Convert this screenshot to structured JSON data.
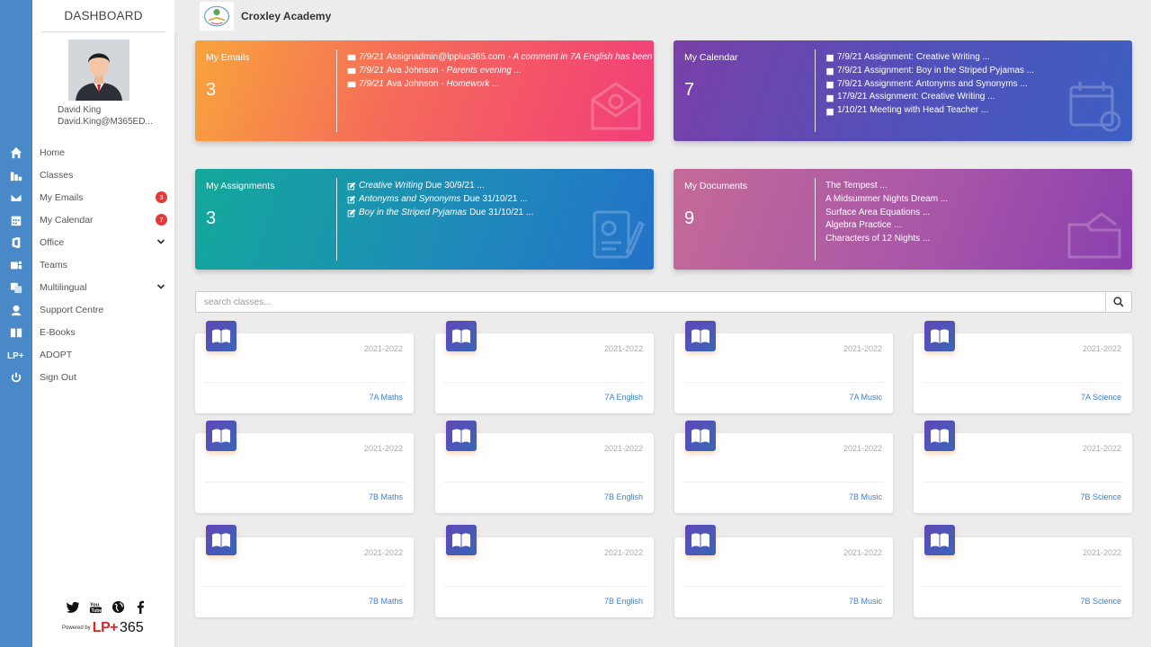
{
  "sidebar": {
    "title": "DASHBOARD",
    "user": {
      "name": "David King",
      "email": "David.King@M365ED..."
    },
    "nav": [
      {
        "label": "Home",
        "icon": "home-icon"
      },
      {
        "label": "Classes",
        "icon": "classes-icon"
      },
      {
        "label": "My Emails",
        "icon": "envelope-icon",
        "badge": "3"
      },
      {
        "label": "My Calendar",
        "icon": "calendar-icon",
        "badge": "7"
      },
      {
        "label": "Office",
        "icon": "office-icon",
        "expandable": true
      },
      {
        "label": "Teams",
        "icon": "teams-icon"
      },
      {
        "label": "Multilingual",
        "icon": "translate-icon",
        "expandable": true
      },
      {
        "label": "Support Centre",
        "icon": "support-icon"
      },
      {
        "label": "E-Books",
        "icon": "ebooks-icon"
      },
      {
        "label": "ADOPT",
        "icon": "lp-icon"
      },
      {
        "label": "Sign Out",
        "icon": "power-icon"
      }
    ],
    "social": [
      "twitter-icon",
      "youtube-icon",
      "globe-icon",
      "facebook-icon"
    ],
    "powered_by": "Powered by",
    "brand_lp": "LP+",
    "brand_365": "365"
  },
  "header": {
    "school": "Croxley Academy"
  },
  "cards": {
    "emails": {
      "label": "My Emails",
      "count": "3",
      "items": [
        {
          "date": "7/9/21",
          "sender": "Assignadmin@lpplus365.com",
          "subject": "- A comment in 7A English has been"
        },
        {
          "date": "7/9/21",
          "sender": "Ava Johnson",
          "subject": "- Parents evening ..."
        },
        {
          "date": "7/9/21",
          "sender": "Ava Johnson",
          "subject": "- Homework ..."
        }
      ]
    },
    "calendar": {
      "label": "My Calendar",
      "count": "7",
      "items": [
        "7/9/21 Assignment: Creative Writing ...",
        "7/9/21 Assignment: Boy in the Striped Pyjamas ...",
        "7/9/21 Assignment: Antonyms and Synonyms ...",
        "17/9/21 Assignment: Creative Writing ...",
        "1/10/21 Meeting with Head Teacher ..."
      ]
    },
    "assignments": {
      "label": "My Assignments",
      "count": "3",
      "items": [
        {
          "title": "Creative Writing",
          "due": "Due 30/9/21 ..."
        },
        {
          "title": "Antonyms and Synonyms",
          "due": "Due 31/10/21 ..."
        },
        {
          "title": "Boy in the Striped Pyjamas",
          "due": "Due 31/10/21 ..."
        }
      ]
    },
    "documents": {
      "label": "My Documents",
      "count": "9",
      "items": [
        "The Tempest ...",
        "A Midsummer Nights Dream ...",
        "Surface Area Equations ...",
        "Algebra Practice ...",
        "Characters of 12 Nights ..."
      ]
    }
  },
  "search": {
    "placeholder": "search classes..."
  },
  "classes": [
    {
      "year": "2021-2022",
      "name": "7A Maths"
    },
    {
      "year": "2021-2022",
      "name": "7A English"
    },
    {
      "year": "2021-2022",
      "name": "7A Music"
    },
    {
      "year": "2021-2022",
      "name": "7A Science"
    },
    {
      "year": "2021-2022",
      "name": "7B Maths"
    },
    {
      "year": "2021-2022",
      "name": "7B English"
    },
    {
      "year": "2021-2022",
      "name": "7B Music"
    },
    {
      "year": "2021-2022",
      "name": "7B Science"
    },
    {
      "year": "2021-2022",
      "name": "7B Maths"
    },
    {
      "year": "2021-2022",
      "name": "7B English"
    },
    {
      "year": "2021-2022",
      "name": "7B Music"
    },
    {
      "year": "2021-2022",
      "name": "7B Science"
    }
  ],
  "colors": {
    "rail": "#4a89c8",
    "emails_gradient": [
      "#f8a43c",
      "#f23d7a"
    ],
    "calendar_gradient": [
      "#7a3fa8",
      "#3c5fc2"
    ],
    "assignments_gradient": [
      "#14a99a",
      "#2371c9"
    ],
    "documents_gradient": [
      "#c56a98",
      "#8a3fae"
    ],
    "link": "#3f7fcf",
    "badge": "#e53935"
  }
}
